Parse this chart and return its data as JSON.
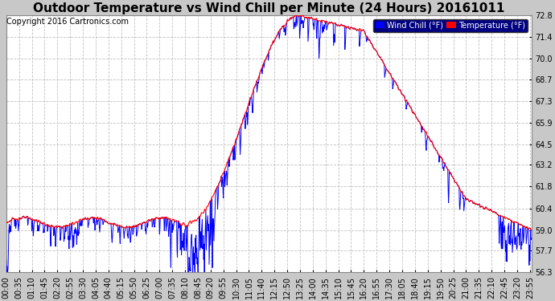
{
  "title": "Outdoor Temperature vs Wind Chill per Minute (24 Hours) 20161011",
  "copyright": "Copyright 2016 Cartronics.com",
  "legend_wind_chill": "Wind Chill (°F)",
  "legend_temperature": "Temperature (°F)",
  "ylim_min": 56.3,
  "ylim_max": 72.8,
  "yticks": [
    56.3,
    57.7,
    59.0,
    60.4,
    61.8,
    63.2,
    64.5,
    65.9,
    67.3,
    68.7,
    70.0,
    71.4,
    72.8
  ],
  "background_color": "#c8c8c8",
  "plot_background": "#ffffff",
  "grid_color": "#c0c0c0",
  "temp_color": "#ff0000",
  "wind_color": "#0000ff",
  "title_fontsize": 11,
  "copyright_fontsize": 7,
  "tick_fontsize": 7,
  "total_minutes": 1440,
  "x_tick_interval": 35
}
